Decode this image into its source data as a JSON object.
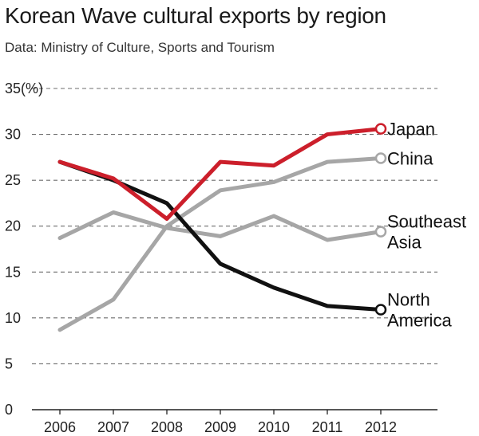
{
  "header": {
    "title": "Korean Wave cultural exports by region",
    "subtitle": "Data: Ministry of Culture, Sports and Tourism"
  },
  "chart_data": {
    "type": "line",
    "title": "Korean Wave cultural exports by region",
    "subtitle": "Data: Ministry of Culture, Sports and Tourism",
    "xlabel": "",
    "ylabel": "",
    "y_unit_label": "35(%)",
    "categories": [
      "2006",
      "2007",
      "2008",
      "2009",
      "2010",
      "2011",
      "2012"
    ],
    "ylim": [
      0,
      35
    ],
    "yticks": [
      0,
      5,
      10,
      15,
      20,
      25,
      30,
      35
    ],
    "ytick_labels": [
      "0",
      "5",
      "10",
      "15",
      "20",
      "25",
      "30",
      "35(%)"
    ],
    "grid": "horizontal dashed",
    "legend": "inline labels at right end of lines",
    "series": [
      {
        "name": "Japan",
        "label_lines": [
          "Japan"
        ],
        "color": "#cc1f2b",
        "values": [
          27.0,
          25.2,
          20.8,
          27.0,
          26.6,
          30.0,
          30.6
        ]
      },
      {
        "name": "China",
        "label_lines": [
          "China"
        ],
        "color": "#a6a6a6",
        "values": [
          8.7,
          12.0,
          20.0,
          23.9,
          24.8,
          27.0,
          27.4
        ]
      },
      {
        "name": "Southeast Asia",
        "label_lines": [
          "Southeast",
          "Asia"
        ],
        "color": "#a6a6a6",
        "values": [
          18.7,
          21.5,
          19.8,
          18.9,
          21.1,
          18.5,
          19.4
        ]
      },
      {
        "name": "North America",
        "label_lines": [
          "North",
          "America"
        ],
        "color": "#111111",
        "values": [
          27.0,
          25.0,
          22.5,
          15.9,
          13.3,
          11.3,
          10.9
        ]
      }
    ]
  }
}
